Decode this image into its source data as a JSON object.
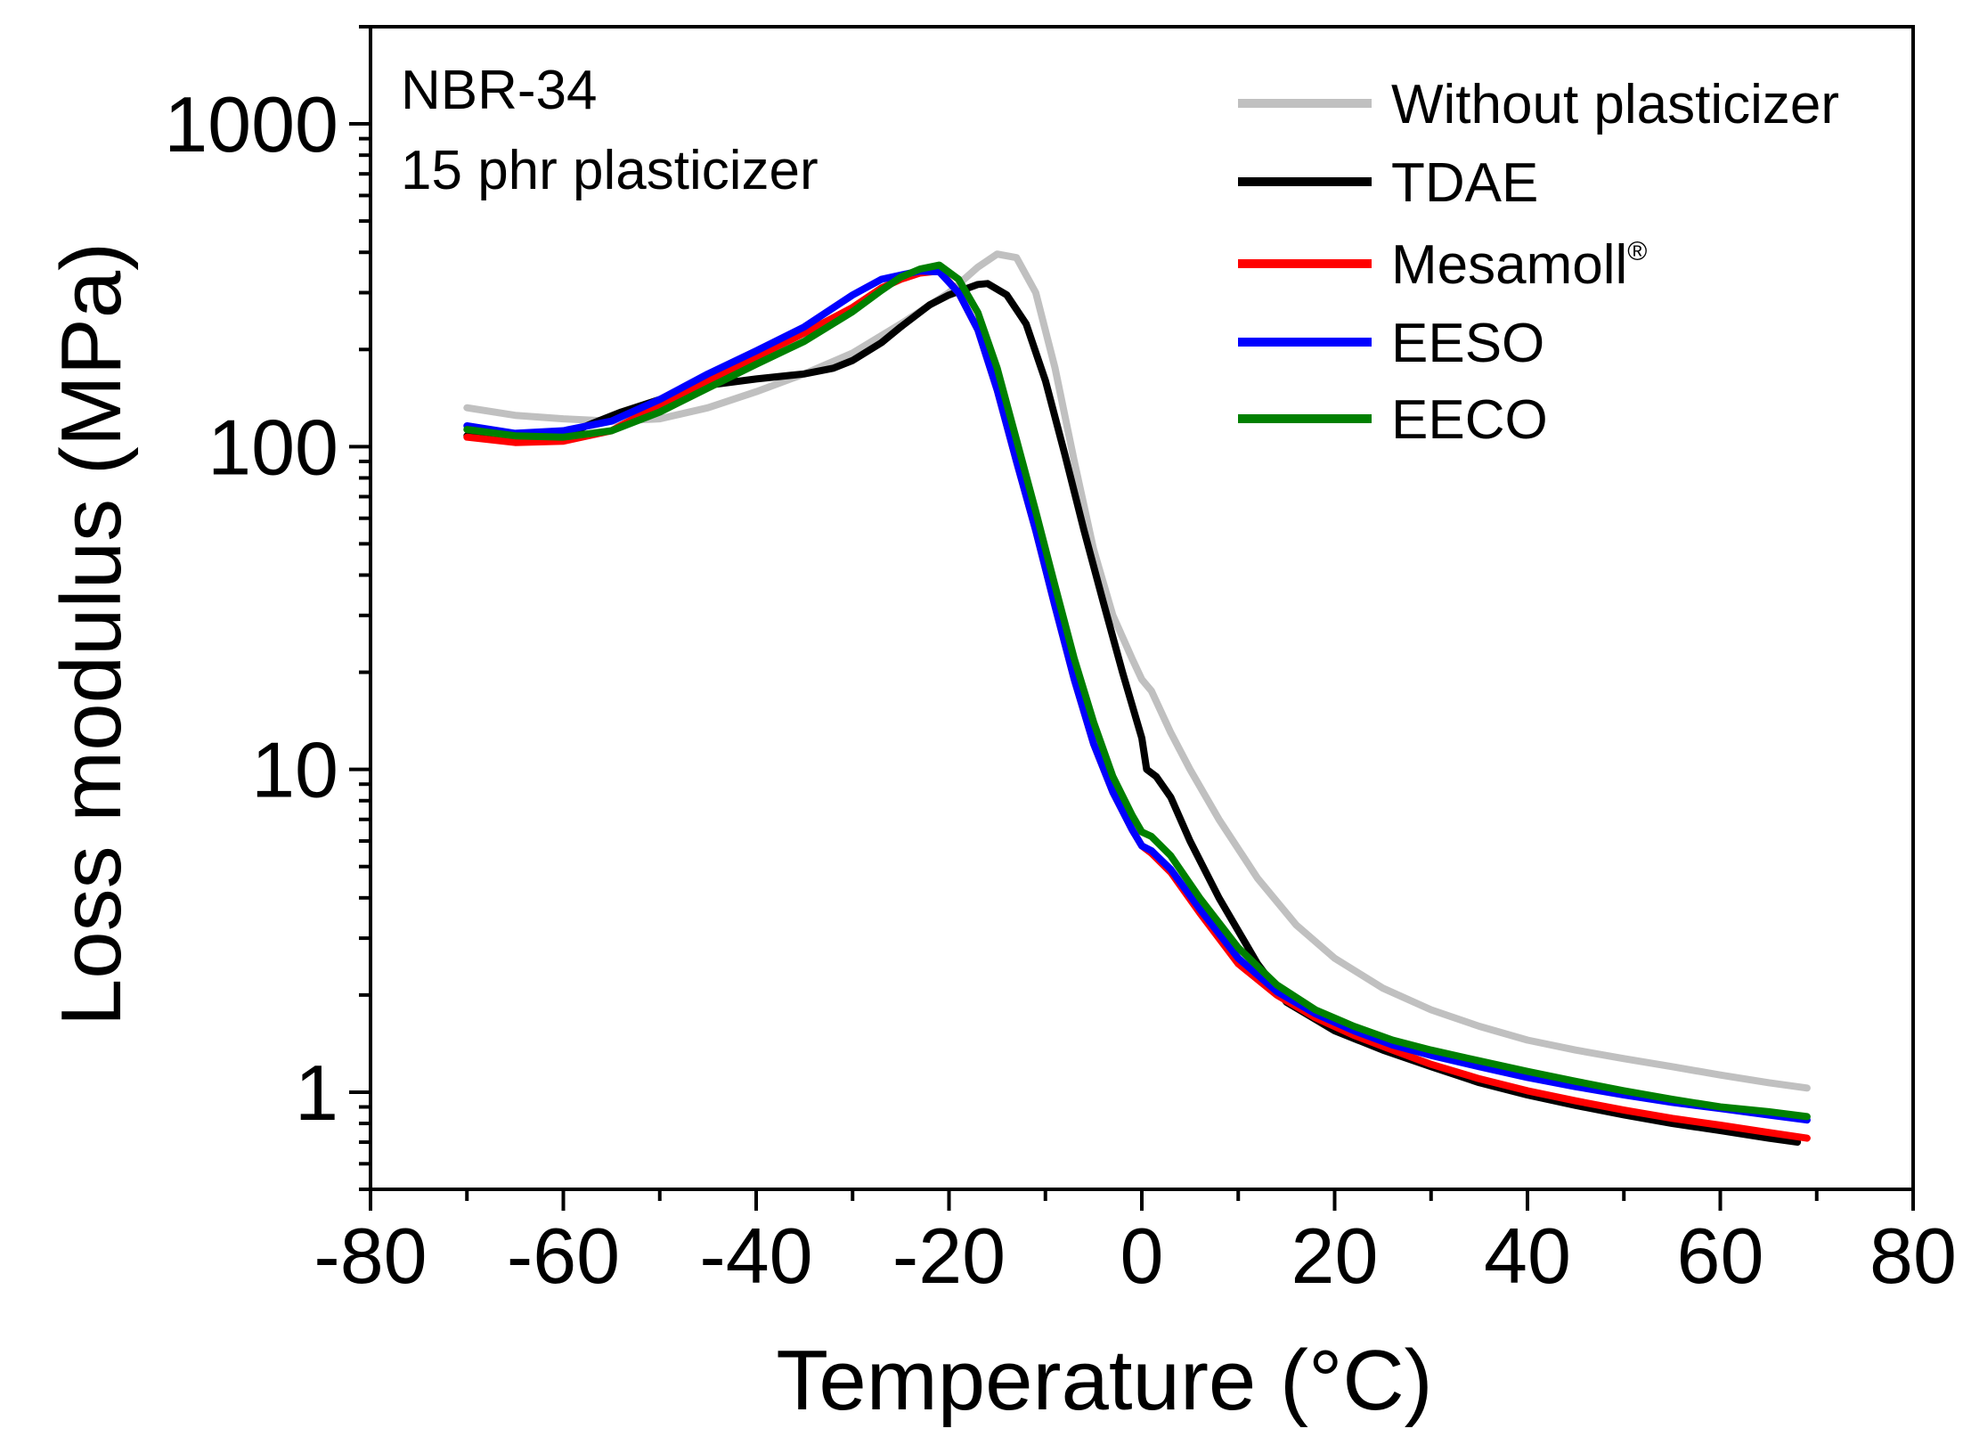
{
  "chart_data": {
    "type": "line",
    "xlabel": "Temperature (°C)",
    "ylabel": "Loss modulus (MPa)",
    "xlim": [
      -80,
      80
    ],
    "ylim": [
      0.5,
      2000
    ],
    "yscale": "log",
    "x_ticks": [
      "-80",
      "-60",
      "-40",
      "-20",
      "0",
      "20",
      "40",
      "60",
      "80"
    ],
    "y_ticks": [
      "1",
      "10",
      "100",
      "1000"
    ],
    "annotation": {
      "line1": "NBR-34",
      "line2": "15 phr plasticizer"
    },
    "legend_position": "top-right",
    "series": [
      {
        "name": "Without plasticizer",
        "color": "#c0c0c0",
        "points": [
          [
            -70,
            132
          ],
          [
            -65,
            125
          ],
          [
            -60,
            122
          ],
          [
            -55,
            120
          ],
          [
            -50,
            122
          ],
          [
            -45,
            132
          ],
          [
            -40,
            148
          ],
          [
            -35,
            168
          ],
          [
            -30,
            195
          ],
          [
            -25,
            240
          ],
          [
            -20,
            300
          ],
          [
            -17,
            360
          ],
          [
            -15,
            395
          ],
          [
            -13,
            385
          ],
          [
            -11,
            300
          ],
          [
            -9,
            175
          ],
          [
            -7,
            90
          ],
          [
            -5,
            48
          ],
          [
            -3,
            30
          ],
          [
            -1,
            22
          ],
          [
            0,
            19
          ],
          [
            1,
            17.5
          ],
          [
            3,
            13
          ],
          [
            5,
            10
          ],
          [
            8,
            7
          ],
          [
            12,
            4.6
          ],
          [
            16,
            3.3
          ],
          [
            20,
            2.6
          ],
          [
            25,
            2.1
          ],
          [
            30,
            1.8
          ],
          [
            35,
            1.6
          ],
          [
            40,
            1.45
          ],
          [
            45,
            1.35
          ],
          [
            50,
            1.27
          ],
          [
            55,
            1.2
          ],
          [
            60,
            1.13
          ],
          [
            65,
            1.07
          ],
          [
            69,
            1.03
          ]
        ]
      },
      {
        "name": "TDAE",
        "color": "#000000",
        "points": [
          [
            -70,
            108
          ],
          [
            -65,
            105
          ],
          [
            -60,
            108
          ],
          [
            -57,
            118
          ],
          [
            -54,
            128
          ],
          [
            -50,
            140
          ],
          [
            -45,
            155
          ],
          [
            -40,
            162
          ],
          [
            -35,
            168
          ],
          [
            -32,
            175
          ],
          [
            -30,
            185
          ],
          [
            -27,
            210
          ],
          [
            -25,
            235
          ],
          [
            -22,
            275
          ],
          [
            -20,
            295
          ],
          [
            -17,
            318
          ],
          [
            -16,
            320
          ],
          [
            -14,
            295
          ],
          [
            -12,
            240
          ],
          [
            -10,
            160
          ],
          [
            -8,
            95
          ],
          [
            -6,
            55
          ],
          [
            -4,
            33
          ],
          [
            -2,
            20
          ],
          [
            0,
            12.5
          ],
          [
            0.5,
            10
          ],
          [
            1.5,
            9.5
          ],
          [
            3,
            8.2
          ],
          [
            5,
            6
          ],
          [
            8,
            4
          ],
          [
            12,
            2.5
          ],
          [
            15,
            1.9
          ],
          [
            20,
            1.55
          ],
          [
            25,
            1.35
          ],
          [
            30,
            1.2
          ],
          [
            35,
            1.07
          ],
          [
            40,
            0.98
          ],
          [
            45,
            0.91
          ],
          [
            50,
            0.85
          ],
          [
            55,
            0.8
          ],
          [
            60,
            0.76
          ],
          [
            65,
            0.72
          ],
          [
            68,
            0.7
          ]
        ]
      },
      {
        "name": "Mesamoll®",
        "color": "#ff0000",
        "points": [
          [
            -70,
            107
          ],
          [
            -65,
            103
          ],
          [
            -60,
            104
          ],
          [
            -55,
            112
          ],
          [
            -50,
            135
          ],
          [
            -45,
            160
          ],
          [
            -40,
            190
          ],
          [
            -35,
            225
          ],
          [
            -30,
            270
          ],
          [
            -27,
            310
          ],
          [
            -25,
            330
          ],
          [
            -23,
            345
          ],
          [
            -21,
            350
          ],
          [
            -19,
            300
          ],
          [
            -17,
            230
          ],
          [
            -15,
            150
          ],
          [
            -13,
            90
          ],
          [
            -11,
            55
          ],
          [
            -9,
            32
          ],
          [
            -7,
            19
          ],
          [
            -5,
            12
          ],
          [
            -3,
            8.5
          ],
          [
            -1,
            6.5
          ],
          [
            0,
            5.8
          ],
          [
            1,
            5.5
          ],
          [
            3,
            4.8
          ],
          [
            6,
            3.6
          ],
          [
            10,
            2.5
          ],
          [
            14,
            2
          ],
          [
            18,
            1.7
          ],
          [
            22,
            1.5
          ],
          [
            26,
            1.35
          ],
          [
            30,
            1.22
          ],
          [
            35,
            1.1
          ],
          [
            40,
            1.01
          ],
          [
            45,
            0.94
          ],
          [
            50,
            0.88
          ],
          [
            55,
            0.83
          ],
          [
            60,
            0.79
          ],
          [
            65,
            0.75
          ],
          [
            69,
            0.72
          ]
        ]
      },
      {
        "name": "EESO",
        "color": "#0000ff",
        "points": [
          [
            -70,
            116
          ],
          [
            -65,
            110
          ],
          [
            -60,
            112
          ],
          [
            -55,
            120
          ],
          [
            -50,
            140
          ],
          [
            -45,
            168
          ],
          [
            -40,
            198
          ],
          [
            -35,
            235
          ],
          [
            -30,
            295
          ],
          [
            -27,
            330
          ],
          [
            -25,
            340
          ],
          [
            -23,
            350
          ],
          [
            -21,
            348
          ],
          [
            -19,
            300
          ],
          [
            -17,
            230
          ],
          [
            -15,
            150
          ],
          [
            -13,
            90
          ],
          [
            -11,
            55
          ],
          [
            -9,
            32
          ],
          [
            -7,
            19
          ],
          [
            -5,
            12
          ],
          [
            -3,
            8.5
          ],
          [
            -1,
            6.5
          ],
          [
            0,
            5.8
          ],
          [
            1,
            5.6
          ],
          [
            3,
            4.9
          ],
          [
            6,
            3.7
          ],
          [
            10,
            2.6
          ],
          [
            14,
            2.05
          ],
          [
            18,
            1.75
          ],
          [
            22,
            1.55
          ],
          [
            26,
            1.4
          ],
          [
            30,
            1.3
          ],
          [
            35,
            1.2
          ],
          [
            40,
            1.11
          ],
          [
            45,
            1.04
          ],
          [
            50,
            0.98
          ],
          [
            55,
            0.93
          ],
          [
            60,
            0.89
          ],
          [
            65,
            0.85
          ],
          [
            69,
            0.82
          ]
        ]
      },
      {
        "name": "EECO",
        "color": "#008000",
        "points": [
          [
            -70,
            113
          ],
          [
            -65,
            108
          ],
          [
            -60,
            107
          ],
          [
            -55,
            112
          ],
          [
            -50,
            128
          ],
          [
            -45,
            152
          ],
          [
            -40,
            180
          ],
          [
            -35,
            212
          ],
          [
            -30,
            262
          ],
          [
            -27,
            305
          ],
          [
            -25,
            335
          ],
          [
            -23,
            355
          ],
          [
            -21,
            365
          ],
          [
            -19,
            330
          ],
          [
            -17,
            260
          ],
          [
            -15,
            175
          ],
          [
            -13,
            105
          ],
          [
            -11,
            63
          ],
          [
            -9,
            37
          ],
          [
            -7,
            22
          ],
          [
            -5,
            14
          ],
          [
            -3,
            9.5
          ],
          [
            -1,
            7.2
          ],
          [
            0,
            6.4
          ],
          [
            1,
            6.2
          ],
          [
            3,
            5.4
          ],
          [
            6,
            4
          ],
          [
            10,
            2.8
          ],
          [
            14,
            2.15
          ],
          [
            18,
            1.8
          ],
          [
            22,
            1.6
          ],
          [
            26,
            1.45
          ],
          [
            30,
            1.35
          ],
          [
            35,
            1.25
          ],
          [
            40,
            1.16
          ],
          [
            45,
            1.08
          ],
          [
            50,
            1.01
          ],
          [
            55,
            0.95
          ],
          [
            60,
            0.9
          ],
          [
            65,
            0.87
          ],
          [
            69,
            0.84
          ]
        ]
      }
    ]
  }
}
